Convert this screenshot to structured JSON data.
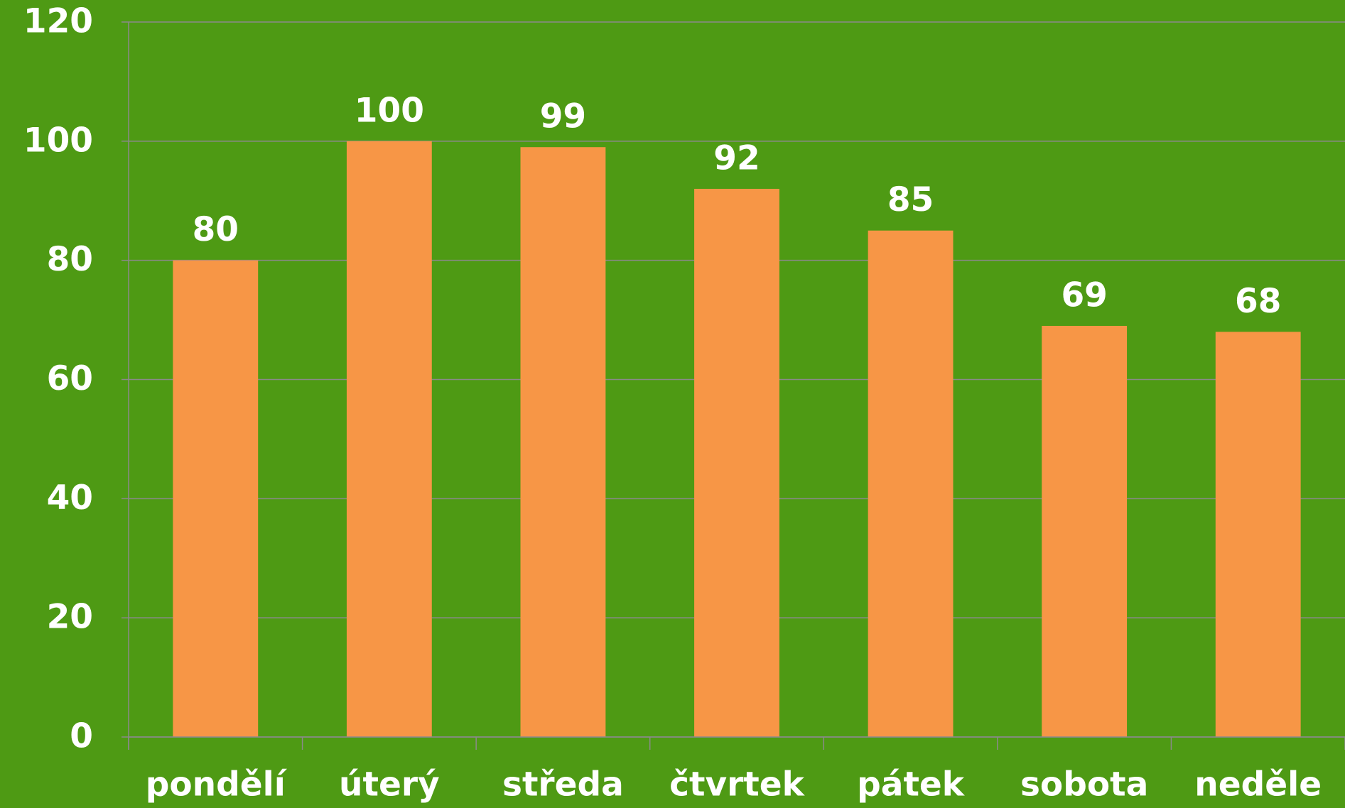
{
  "chart_data": {
    "type": "bar",
    "categories": [
      "pondělí",
      "úterý",
      "středa",
      "čtvrtek",
      "pátek",
      "sobota",
      "neděle"
    ],
    "values": [
      80,
      100,
      99,
      92,
      85,
      69,
      68
    ],
    "color": "#f79646",
    "ylim": [
      0,
      120
    ],
    "yticks": [
      0,
      20,
      40,
      60,
      80,
      100,
      120
    ],
    "grid": true
  }
}
